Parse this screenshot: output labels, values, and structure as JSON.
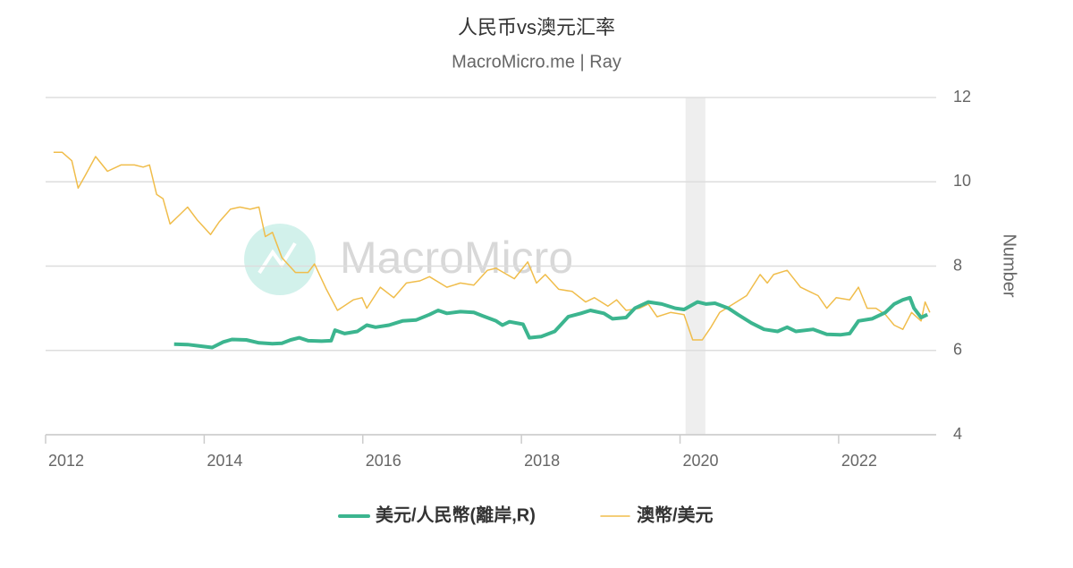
{
  "chart_data": {
    "type": "line",
    "title": "人民币vs澳元汇率",
    "subtitle": "MacroMicro.me | Ray",
    "watermark": "MacroMicro",
    "y_axis_label": "Number",
    "xlim": [
      2012,
      2023.23
    ],
    "xticks": [
      2012,
      2014,
      2016,
      2018,
      2020,
      2022
    ],
    "ylim": [
      4,
      12
    ],
    "yticks": [
      4,
      6,
      8,
      10,
      12
    ],
    "grid": true,
    "legend": "bottom",
    "shaded_ranges": [
      [
        2020.07,
        2020.32
      ]
    ],
    "series": [
      {
        "name": "美元/人民幣(離岸,R)",
        "color": "#3cb58f",
        "line_width": 4,
        "x": [
          2013.62,
          2013.79,
          2013.96,
          2014.1,
          2014.24,
          2014.35,
          2014.53,
          2014.69,
          2014.86,
          2014.98,
          2015.09,
          2015.2,
          2015.31,
          2015.48,
          2015.6,
          2015.65,
          2015.77,
          2015.93,
          2016.05,
          2016.16,
          2016.33,
          2016.5,
          2016.67,
          2016.84,
          2016.95,
          2017.06,
          2017.23,
          2017.4,
          2017.51,
          2017.68,
          2017.76,
          2017.85,
          2018.02,
          2018.1,
          2018.25,
          2018.42,
          2018.59,
          2018.75,
          2018.87,
          2019.04,
          2019.15,
          2019.32,
          2019.43,
          2019.6,
          2019.77,
          2019.94,
          2020.05,
          2020.22,
          2020.33,
          2020.44,
          2020.61,
          2020.73,
          2020.9,
          2021.06,
          2021.23,
          2021.35,
          2021.46,
          2021.68,
          2021.85,
          2022.02,
          2022.14,
          2022.25,
          2022.42,
          2022.59,
          2022.7,
          2022.81,
          2022.9,
          2022.95,
          2023.04,
          2023.12
        ],
        "values": [
          6.15,
          6.14,
          6.1,
          6.07,
          6.2,
          6.26,
          6.25,
          6.18,
          6.16,
          6.17,
          6.25,
          6.3,
          6.23,
          6.22,
          6.23,
          6.48,
          6.4,
          6.45,
          6.6,
          6.55,
          6.6,
          6.7,
          6.72,
          6.85,
          6.95,
          6.88,
          6.92,
          6.9,
          6.82,
          6.7,
          6.6,
          6.68,
          6.62,
          6.3,
          6.33,
          6.45,
          6.8,
          6.88,
          6.95,
          6.88,
          6.75,
          6.78,
          7.0,
          7.15,
          7.1,
          7.0,
          6.97,
          7.15,
          7.1,
          7.12,
          7.0,
          6.85,
          6.65,
          6.5,
          6.45,
          6.55,
          6.45,
          6.5,
          6.38,
          6.37,
          6.4,
          6.7,
          6.75,
          6.9,
          7.1,
          7.2,
          7.25,
          7.0,
          6.78,
          6.85
        ]
      },
      {
        "name": "澳幣/美元",
        "color": "#f0bd4b",
        "line_width": 1.5,
        "x": [
          2012.1,
          2012.21,
          2012.33,
          2012.41,
          2012.5,
          2012.63,
          2012.78,
          2012.95,
          2013.12,
          2013.23,
          2013.31,
          2013.4,
          2013.48,
          2013.57,
          2013.68,
          2013.79,
          2013.91,
          2014.08,
          2014.19,
          2014.33,
          2014.45,
          2014.58,
          2014.69,
          2014.77,
          2014.86,
          2014.98,
          2015.15,
          2015.31,
          2015.39,
          2015.54,
          2015.68,
          2015.88,
          2015.99,
          2016.05,
          2016.22,
          2016.39,
          2016.55,
          2016.72,
          2016.84,
          2017.06,
          2017.23,
          2017.4,
          2017.57,
          2017.68,
          2017.91,
          2018.08,
          2018.19,
          2018.3,
          2018.47,
          2018.64,
          2018.81,
          2018.92,
          2019.09,
          2019.2,
          2019.32,
          2019.49,
          2019.6,
          2019.71,
          2019.88,
          2020.05,
          2020.16,
          2020.28,
          2020.39,
          2020.5,
          2020.67,
          2020.84,
          2021.01,
          2021.1,
          2021.18,
          2021.35,
          2021.52,
          2021.63,
          2021.74,
          2021.85,
          2021.97,
          2022.14,
          2022.25,
          2022.36,
          2022.47,
          2022.59,
          2022.7,
          2022.81,
          2022.92,
          2023.04,
          2023.09,
          2023.15
        ],
        "values": [
          10.7,
          10.7,
          10.5,
          9.85,
          10.15,
          10.6,
          10.25,
          10.4,
          10.4,
          10.35,
          10.4,
          9.7,
          9.6,
          9.0,
          9.2,
          9.4,
          9.1,
          8.75,
          9.05,
          9.35,
          9.4,
          9.35,
          9.4,
          8.7,
          8.8,
          8.2,
          7.85,
          7.85,
          8.05,
          7.45,
          6.95,
          7.2,
          7.25,
          7.0,
          7.5,
          7.25,
          7.6,
          7.65,
          7.75,
          7.5,
          7.6,
          7.55,
          7.9,
          7.95,
          7.7,
          8.1,
          7.6,
          7.8,
          7.45,
          7.4,
          7.15,
          7.25,
          7.05,
          7.2,
          6.95,
          7.0,
          7.1,
          6.8,
          6.9,
          6.85,
          6.25,
          6.25,
          6.55,
          6.9,
          7.1,
          7.3,
          7.8,
          7.6,
          7.8,
          7.9,
          7.5,
          7.4,
          7.3,
          7.0,
          7.25,
          7.2,
          7.5,
          7.0,
          7.0,
          6.85,
          6.6,
          6.5,
          6.9,
          6.7,
          7.15,
          6.9
        ]
      }
    ]
  }
}
